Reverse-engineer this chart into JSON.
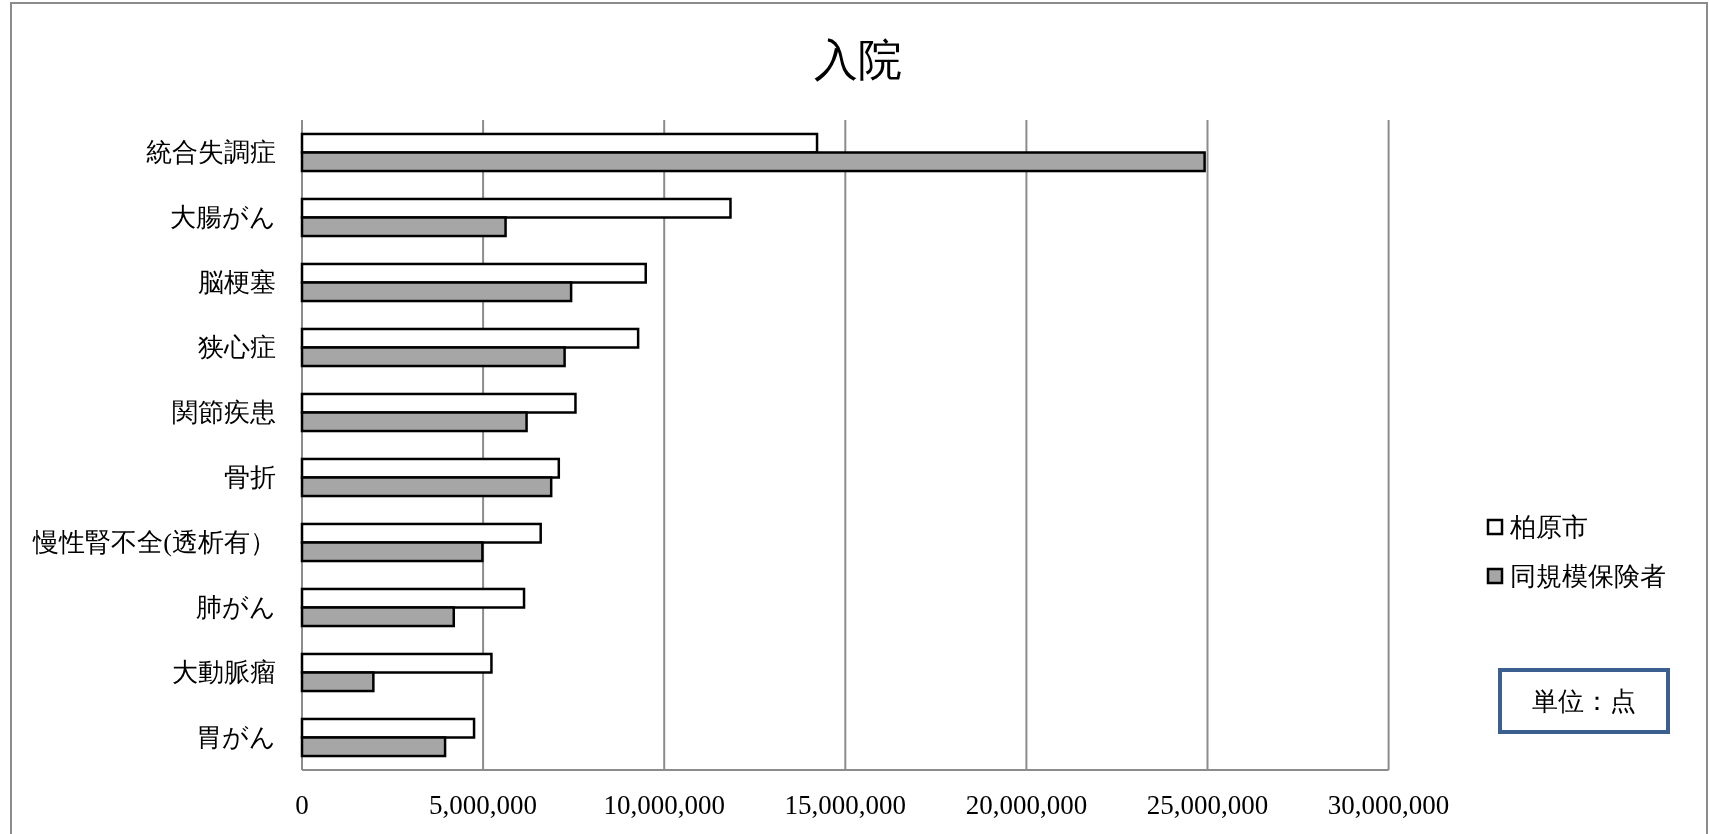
{
  "chart_data": {
    "type": "bar",
    "orientation": "horizontal",
    "title": "入院",
    "categories": [
      "統合失調症",
      "大腸がん",
      "脳梗塞",
      "狭心症",
      "関節疾患",
      "骨折",
      "慢性腎不全(透析有）",
      "肺がん",
      "大動脈瘤",
      "胃がん"
    ],
    "series": [
      {
        "name": "柏原市",
        "color": "#ffffff",
        "values": [
          14220000,
          11830000,
          9490000,
          9280000,
          7550000,
          7090000,
          6590000,
          6130000,
          5230000,
          4750000
        ]
      },
      {
        "name": "同規模保険者",
        "color": "#a6a6a6",
        "values": [
          24920000,
          5620000,
          7430000,
          7250000,
          6200000,
          6880000,
          4980000,
          4190000,
          1970000,
          3950000
        ]
      }
    ],
    "xlim": [
      0,
      30000000
    ],
    "xticks": [
      0,
      {
        "value": 5000000,
        "label": "5,000,000"
      },
      {
        "value": 10000000,
        "label": "10,000,000"
      },
      {
        "value": 15000000,
        "label": "15,000,000"
      },
      {
        "value": 20000000,
        "label": "20,000,000"
      },
      {
        "value": 25000000,
        "label": "25,000,000"
      },
      {
        "value": 30000000,
        "label": "30,000,000"
      }
    ],
    "grid": "x",
    "legend": "right",
    "annotations": [
      "単位：点"
    ]
  }
}
